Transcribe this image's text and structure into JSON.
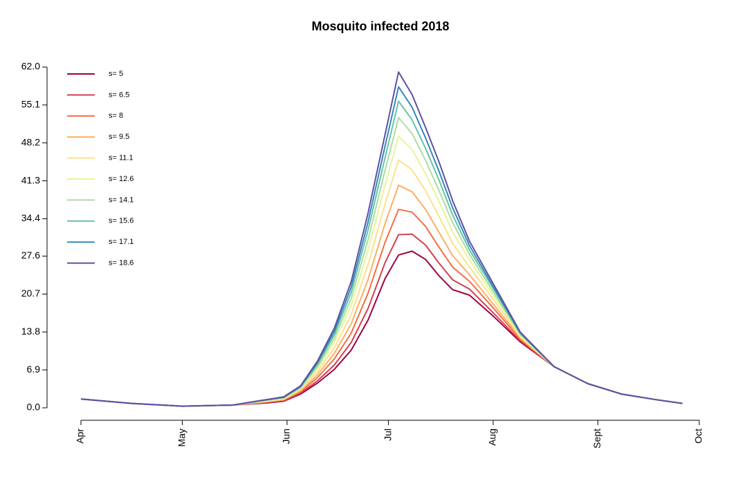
{
  "chart_data": {
    "type": "line",
    "title": "Mosquito infected 2018",
    "x": [
      0,
      15,
      30,
      45,
      55,
      60,
      65,
      70,
      75,
      80,
      85,
      90,
      94,
      98,
      102,
      106,
      110,
      115,
      122,
      130,
      140,
      150,
      160,
      170,
      178
    ],
    "xlim": [
      0,
      183
    ],
    "xticks": [
      {
        "value": 0,
        "label": "Apr"
      },
      {
        "value": 30,
        "label": "May"
      },
      {
        "value": 61,
        "label": "Jun"
      },
      {
        "value": 91,
        "label": "Jul"
      },
      {
        "value": 122,
        "label": "Aug"
      },
      {
        "value": 153,
        "label": "Sept"
      },
      {
        "value": 183,
        "label": "Oct"
      }
    ],
    "ylim": [
      0,
      62
    ],
    "yticks": [
      {
        "value": 0,
        "label": "0.0"
      },
      6.9,
      13.8,
      20.7,
      27.6,
      34.4,
      41.3,
      48.2,
      55.1,
      {
        "value": 62,
        "label": "62.0"
      }
    ],
    "legend": "top-left",
    "series": [
      {
        "name": "s= 5",
        "color": "#9e0142",
        "values": [
          1.6,
          0.8,
          0.3,
          0.5,
          0.9,
          1.2,
          2.5,
          4.5,
          7,
          10.5,
          16,
          23.5,
          27.8,
          28.5,
          27,
          24,
          21.5,
          20.5,
          16.7,
          12,
          7.5,
          4.4,
          2.5,
          1.5,
          0.8
        ]
      },
      {
        "name": "s= 6.5",
        "color": "#d53e4f",
        "values": [
          1.6,
          0.8,
          0.3,
          0.5,
          1.0,
          1.3,
          2.7,
          4.9,
          7.8,
          11.9,
          18.1,
          26.4,
          31.5,
          31.6,
          29.6,
          26.3,
          23.3,
          21.6,
          17.3,
          12.2,
          7.5,
          4.4,
          2.5,
          1.5,
          0.8
        ]
      },
      {
        "name": "s= 8",
        "color": "#f46d43",
        "values": [
          1.6,
          0.8,
          0.3,
          0.5,
          1.1,
          1.4,
          2.9,
          5.5,
          8.9,
          13.6,
          20.9,
          30.1,
          36.1,
          35.6,
          33,
          29.2,
          25.6,
          23,
          18.2,
          12.5,
          7.5,
          4.4,
          2.5,
          1.5,
          0.8
        ]
      },
      {
        "name": "s= 9.5",
        "color": "#fdae61",
        "values": [
          1.6,
          0.8,
          0.3,
          0.5,
          1.1,
          1.5,
          3.1,
          6.0,
          9.9,
          15.3,
          23.4,
          33.5,
          40.5,
          39.3,
          36.1,
          31.9,
          27.7,
          24.2,
          18.9,
          12.7,
          7.5,
          4.4,
          2.5,
          1.5,
          0.8
        ]
      },
      {
        "name": "s= 11.1",
        "color": "#fee08b",
        "values": [
          1.6,
          0.8,
          0.3,
          0.5,
          1.2,
          1.6,
          3.3,
          6.6,
          10.9,
          17,
          26.1,
          37.1,
          45.1,
          43.3,
          39.5,
          34.8,
          29.9,
          25.6,
          19.8,
          12.9,
          7.5,
          4.4,
          2.5,
          1.5,
          0.8
        ]
      },
      {
        "name": "s= 12.6",
        "color": "#e6f598",
        "values": [
          1.6,
          0.8,
          0.3,
          0.5,
          1.3,
          1.7,
          3.5,
          7.1,
          11.9,
          18.6,
          28.7,
          40.5,
          49.4,
          47,
          42.6,
          37.5,
          32,
          26.9,
          20.5,
          13.2,
          7.5,
          4.4,
          2.5,
          1.5,
          0.8
        ]
      },
      {
        "name": "s= 14.1",
        "color": "#abdda4",
        "values": [
          1.6,
          0.8,
          0.3,
          0.5,
          1.4,
          1.8,
          3.6,
          7.5,
          12.6,
          19.9,
          30.6,
          43.2,
          52.8,
          49.9,
          45,
          39.5,
          33.7,
          27.9,
          21.1,
          13.4,
          7.5,
          4.4,
          2.5,
          1.5,
          0.8
        ]
      },
      {
        "name": "s= 15.6",
        "color": "#66c2a5",
        "values": [
          1.6,
          0.8,
          0.3,
          0.5,
          1.4,
          1.9,
          3.8,
          7.9,
          13.3,
          21,
          32.4,
          45.5,
          55.8,
          52.4,
          47.2,
          41.4,
          35.1,
          28.7,
          21.7,
          13.5,
          7.5,
          4.4,
          2.5,
          1.5,
          0.8
        ]
      },
      {
        "name": "s= 17.1",
        "color": "#3288bd",
        "values": [
          1.6,
          0.8,
          0.3,
          0.5,
          1.5,
          1.9,
          3.9,
          8.2,
          13.9,
          22,
          33.9,
          47.6,
          58.4,
          54.7,
          49.1,
          43,
          36.4,
          29.5,
          22.1,
          13.7,
          7.5,
          4.4,
          2.5,
          1.5,
          0.8
        ]
      },
      {
        "name": "s= 18.6",
        "color": "#5e4fa2",
        "values": [
          1.6,
          0.8,
          0.3,
          0.5,
          1.5,
          2.0,
          4.0,
          8.5,
          14.5,
          23,
          35.5,
          49.7,
          61.1,
          57,
          51,
          44.7,
          37.7,
          30.3,
          22.6,
          13.8,
          7.5,
          4.4,
          2.5,
          1.5,
          0.8
        ]
      }
    ]
  }
}
